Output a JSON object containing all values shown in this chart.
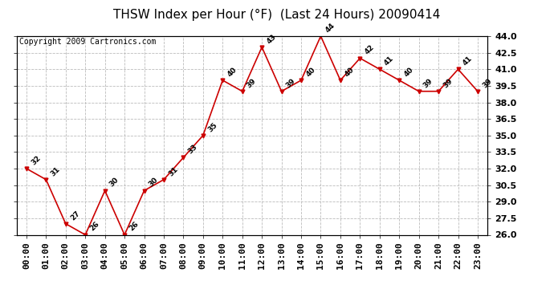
{
  "title": "THSW Index per Hour (°F)  (Last 24 Hours) 20090414",
  "copyright": "Copyright 2009 Cartronics.com",
  "hours": [
    "00:00",
    "01:00",
    "02:00",
    "03:00",
    "04:00",
    "05:00",
    "06:00",
    "07:00",
    "08:00",
    "09:00",
    "10:00",
    "11:00",
    "12:00",
    "13:00",
    "14:00",
    "15:00",
    "16:00",
    "17:00",
    "18:00",
    "19:00",
    "20:00",
    "21:00",
    "22:00",
    "23:00"
  ],
  "values": [
    32,
    31,
    27,
    26,
    30,
    26,
    30,
    31,
    33,
    35,
    40,
    39,
    43,
    39,
    40,
    44,
    40,
    42,
    41,
    40,
    39,
    39,
    41,
    39
  ],
  "ylim_min": 26.0,
  "ylim_max": 44.0,
  "yticks": [
    26.0,
    27.5,
    29.0,
    30.5,
    32.0,
    33.5,
    35.0,
    36.5,
    38.0,
    39.5,
    41.0,
    42.5,
    44.0
  ],
  "line_color": "#cc0000",
  "marker_color": "#cc0000",
  "bg_color": "#ffffff",
  "plot_bg_color": "#ffffff",
  "grid_color": "#bbbbbb",
  "title_fontsize": 11,
  "tick_fontsize": 8,
  "copyright_fontsize": 7
}
